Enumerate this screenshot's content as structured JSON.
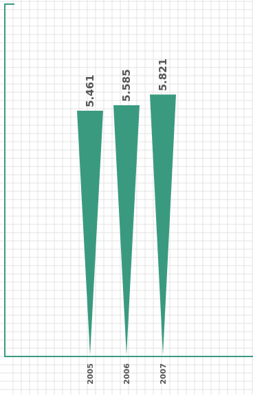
{
  "chart_data": {
    "type": "bar",
    "bar_shape": "inverted-triangle",
    "categories": [
      "2005",
      "2006",
      "2007"
    ],
    "values": [
      5.461,
      5.585,
      5.821
    ],
    "value_labels": [
      "5.461",
      "5.585",
      "5.821"
    ],
    "title": "",
    "xlabel": "",
    "ylabel": "",
    "ylim": [
      0,
      7.8
    ],
    "grid": true,
    "legend": "none",
    "bar_color": "#3a9a80",
    "axis_color": "#3a9a80",
    "grid_color": "#e3e3e3",
    "label_color": "#555555"
  }
}
